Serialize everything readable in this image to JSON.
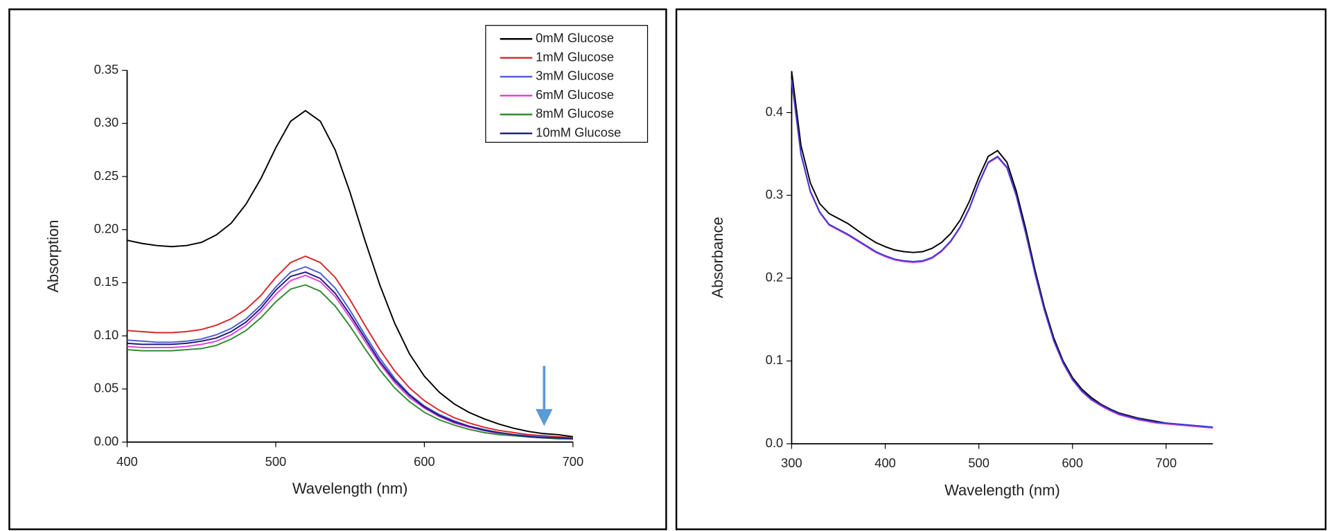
{
  "chart_data": [
    {
      "type": "line",
      "xlabel": "Wavelength (nm)",
      "ylabel": "Absorption",
      "x": [
        400,
        410,
        420,
        430,
        440,
        450,
        460,
        470,
        480,
        490,
        500,
        510,
        520,
        530,
        540,
        550,
        560,
        570,
        580,
        590,
        600,
        610,
        620,
        630,
        640,
        650,
        660,
        670,
        680,
        690,
        700
      ],
      "series": [
        {
          "name": "0mM Glucose",
          "color": "#000000",
          "values": [
            0.19,
            0.187,
            0.185,
            0.184,
            0.185,
            0.188,
            0.195,
            0.206,
            0.224,
            0.248,
            0.277,
            0.302,
            0.312,
            0.302,
            0.275,
            0.235,
            0.19,
            0.148,
            0.112,
            0.083,
            0.062,
            0.047,
            0.036,
            0.028,
            0.022,
            0.017,
            0.013,
            0.01,
            0.008,
            0.007,
            0.005
          ]
        },
        {
          "name": "1mM Glucose",
          "color": "#d62728",
          "values": [
            0.105,
            0.104,
            0.103,
            0.103,
            0.104,
            0.106,
            0.11,
            0.116,
            0.125,
            0.138,
            0.155,
            0.169,
            0.175,
            0.169,
            0.155,
            0.134,
            0.11,
            0.087,
            0.067,
            0.051,
            0.039,
            0.03,
            0.023,
            0.018,
            0.014,
            0.011,
            0.009,
            0.007,
            0.006,
            0.005,
            0.004
          ]
        },
        {
          "name": "3mM Glucose",
          "color": "#4a5bd0",
          "values": [
            0.096,
            0.095,
            0.094,
            0.094,
            0.095,
            0.097,
            0.101,
            0.107,
            0.116,
            0.129,
            0.146,
            0.16,
            0.165,
            0.159,
            0.145,
            0.124,
            0.101,
            0.079,
            0.06,
            0.045,
            0.034,
            0.026,
            0.02,
            0.015,
            0.012,
            0.009,
            0.007,
            0.006,
            0.005,
            0.004,
            0.003
          ]
        },
        {
          "name": "6mM Glucose",
          "color": "#e040e0",
          "values": [
            0.09,
            0.089,
            0.089,
            0.089,
            0.09,
            0.092,
            0.095,
            0.101,
            0.11,
            0.123,
            0.139,
            0.152,
            0.157,
            0.151,
            0.137,
            0.117,
            0.095,
            0.074,
            0.056,
            0.042,
            0.032,
            0.024,
            0.018,
            0.014,
            0.011,
            0.008,
            0.006,
            0.005,
            0.004,
            0.004,
            0.003
          ]
        },
        {
          "name": "8mM Glucose",
          "color": "#2e8b2e",
          "values": [
            0.087,
            0.086,
            0.086,
            0.086,
            0.087,
            0.088,
            0.091,
            0.097,
            0.105,
            0.117,
            0.132,
            0.144,
            0.148,
            0.142,
            0.128,
            0.109,
            0.088,
            0.068,
            0.051,
            0.038,
            0.028,
            0.021,
            0.016,
            0.012,
            0.009,
            0.007,
            0.006,
            0.005,
            0.004,
            0.003,
            0.003
          ]
        },
        {
          "name": "10mM Glucose",
          "color": "#1a1a7a",
          "values": [
            0.093,
            0.092,
            0.092,
            0.092,
            0.093,
            0.095,
            0.098,
            0.104,
            0.113,
            0.126,
            0.143,
            0.156,
            0.16,
            0.154,
            0.14,
            0.12,
            0.098,
            0.076,
            0.058,
            0.044,
            0.033,
            0.025,
            0.019,
            0.015,
            0.011,
            0.009,
            0.007,
            0.005,
            0.004,
            0.004,
            0.003
          ]
        }
      ],
      "xlim": [
        400,
        700
      ],
      "xticks": [
        400,
        500,
        600,
        700
      ],
      "ylim": [
        0,
        0.35
      ],
      "yticks": [
        {
          "value": 0,
          "label": "0.00"
        },
        {
          "value": 0.05,
          "label": "0.05"
        },
        {
          "value": 0.1,
          "label": "0.10"
        },
        {
          "value": 0.15,
          "label": "0.15"
        },
        {
          "value": 0.2,
          "label": "0.20"
        },
        {
          "value": 0.25,
          "label": "0.25"
        },
        {
          "value": 0.3,
          "label": "0.30"
        },
        {
          "value": 0.35,
          "label": "0.35"
        }
      ],
      "legend": "upper right"
    },
    {
      "type": "line",
      "xlabel": "Wavelength (nm)",
      "ylabel": "Absorbance",
      "x": [
        300,
        310,
        320,
        330,
        340,
        350,
        360,
        370,
        380,
        390,
        400,
        410,
        420,
        430,
        440,
        450,
        460,
        470,
        480,
        490,
        500,
        510,
        520,
        530,
        540,
        550,
        560,
        570,
        580,
        590,
        600,
        610,
        620,
        630,
        640,
        650,
        660,
        670,
        680,
        690,
        700,
        710,
        720,
        730,
        740,
        750
      ],
      "series": [
        {
          "color": "#000000",
          "values": [
            0.45,
            0.36,
            0.315,
            0.29,
            0.278,
            0.272,
            0.266,
            0.258,
            0.25,
            0.243,
            0.238,
            0.234,
            0.232,
            0.231,
            0.232,
            0.236,
            0.243,
            0.254,
            0.27,
            0.293,
            0.322,
            0.347,
            0.354,
            0.34,
            0.305,
            0.26,
            0.21,
            0.165,
            0.128,
            0.1,
            0.08,
            0.066,
            0.056,
            0.048,
            0.042,
            0.037,
            0.034,
            0.031,
            0.029,
            0.027,
            0.025,
            0.024,
            0.023,
            0.022,
            0.021,
            0.02
          ]
        },
        {
          "color": "#e040e0",
          "values": [
            0.438,
            0.349,
            0.304,
            0.279,
            0.264,
            0.258,
            0.252,
            0.245,
            0.238,
            0.231,
            0.226,
            0.222,
            0.22,
            0.219,
            0.22,
            0.224,
            0.232,
            0.244,
            0.261,
            0.284,
            0.314,
            0.339,
            0.346,
            0.333,
            0.299,
            0.254,
            0.205,
            0.161,
            0.124,
            0.097,
            0.077,
            0.063,
            0.053,
            0.046,
            0.04,
            0.035,
            0.032,
            0.029,
            0.027,
            0.025,
            0.024,
            0.023,
            0.022,
            0.021,
            0.02,
            0.019
          ]
        },
        {
          "color": "#3a3ad0",
          "values": [
            0.44,
            0.35,
            0.305,
            0.28,
            0.265,
            0.259,
            0.253,
            0.246,
            0.239,
            0.232,
            0.227,
            0.223,
            0.221,
            0.22,
            0.221,
            0.225,
            0.233,
            0.245,
            0.262,
            0.285,
            0.315,
            0.34,
            0.347,
            0.334,
            0.3,
            0.255,
            0.206,
            0.162,
            0.125,
            0.098,
            0.078,
            0.064,
            0.054,
            0.047,
            0.041,
            0.036,
            0.033,
            0.03,
            0.028,
            0.026,
            0.025,
            0.024,
            0.023,
            0.022,
            0.021,
            0.02
          ]
        }
      ],
      "xlim": [
        300,
        750
      ],
      "xticks": [
        300,
        400,
        500,
        600,
        700
      ],
      "ylim": [
        0,
        0.45
      ],
      "yticks": [
        {
          "value": 0,
          "label": "0.0"
        },
        {
          "value": 0.1,
          "label": "0.1"
        },
        {
          "value": 0.2,
          "label": "0.2"
        },
        {
          "value": 0.3,
          "label": "0.3"
        },
        {
          "value": 0.4,
          "label": "0.4"
        }
      ]
    }
  ]
}
